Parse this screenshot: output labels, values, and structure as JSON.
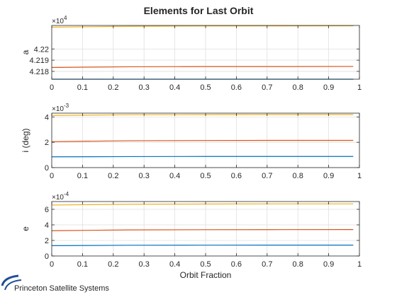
{
  "chart_data": {
    "type": "line",
    "title": "Elements for Last Orbit",
    "xlabel": "Orbit Fraction",
    "x_ticks": [
      "0",
      "0.1",
      "0.2",
      "0.3",
      "0.4",
      "0.5",
      "0.6",
      "0.7",
      "0.8",
      "0.9",
      "1"
    ],
    "grid": true,
    "legend": "none",
    "subplots": [
      {
        "ylabel": "a",
        "exponent_base": "×10",
        "exponent_power": "4",
        "xlim": [
          0,
          1
        ],
        "ylim": [
          4.2173,
          4.2221
        ],
        "y_ticks": [
          4.218,
          4.219,
          4.22
        ],
        "y_tick_labels": [
          "4.218",
          "4.219",
          "4.22"
        ],
        "series": [
          {
            "color": "#0072BD",
            "x": [
              0,
              0.25,
              0.5,
              0.75,
              0.98
            ],
            "values": [
              4.2173,
              4.2173,
              4.2173,
              4.2173,
              4.2173
            ]
          },
          {
            "color": "#D95319",
            "x": [
              0,
              0.25,
              0.5,
              0.75,
              0.98
            ],
            "values": [
              4.21835,
              4.21841,
              4.21843,
              4.21843,
              4.21844
            ]
          },
          {
            "color": "#EDB120",
            "x": [
              0,
              0.25,
              0.5,
              0.75,
              0.98
            ],
            "values": [
              4.22195,
              4.22202,
              4.22205,
              4.22206,
              4.22207
            ]
          }
        ]
      },
      {
        "ylabel": "i (deg)",
        "exponent_base": "×10",
        "exponent_power": "-3",
        "xlim": [
          0,
          1
        ],
        "ylim": [
          0,
          4.3
        ],
        "y_ticks": [
          0,
          2,
          4
        ],
        "y_tick_labels": [
          "0",
          "2",
          "4"
        ],
        "series": [
          {
            "color": "#0072BD",
            "x": [
              0,
              0.25,
              0.5,
              0.75,
              0.98
            ],
            "values": [
              0.85,
              0.87,
              0.88,
              0.88,
              0.88
            ]
          },
          {
            "color": "#D95319",
            "x": [
              0,
              0.25,
              0.5,
              0.75,
              0.98
            ],
            "values": [
              2.05,
              2.12,
              2.14,
              2.15,
              2.15
            ]
          },
          {
            "color": "#EDB120",
            "x": [
              0,
              0.25,
              0.5,
              0.75,
              0.98
            ],
            "values": [
              4.12,
              4.17,
              4.18,
              4.19,
              4.19
            ]
          }
        ]
      },
      {
        "ylabel": "e",
        "exponent_base": "×10",
        "exponent_power": "-4",
        "xlim": [
          0,
          1
        ],
        "ylim": [
          0,
          7
        ],
        "y_ticks": [
          0,
          2,
          4,
          6
        ],
        "y_tick_labels": [
          "0",
          "2",
          "4",
          "6"
        ],
        "series": [
          {
            "color": "#0072BD",
            "x": [
              0,
              0.25,
              0.5,
              0.75,
              0.98
            ],
            "values": [
              1.33,
              1.38,
              1.39,
              1.4,
              1.4
            ]
          },
          {
            "color": "#D95319",
            "x": [
              0,
              0.25,
              0.5,
              0.75,
              0.98
            ],
            "values": [
              3.25,
              3.35,
              3.38,
              3.39,
              3.4
            ]
          },
          {
            "color": "#EDB120",
            "x": [
              0,
              0.25,
              0.5,
              0.75,
              0.98
            ],
            "values": [
              6.55,
              6.65,
              6.68,
              6.7,
              6.7
            ]
          }
        ]
      }
    ]
  },
  "branding": {
    "name": "Princeton Satellite Systems",
    "logo_color": "#1f4e96"
  }
}
